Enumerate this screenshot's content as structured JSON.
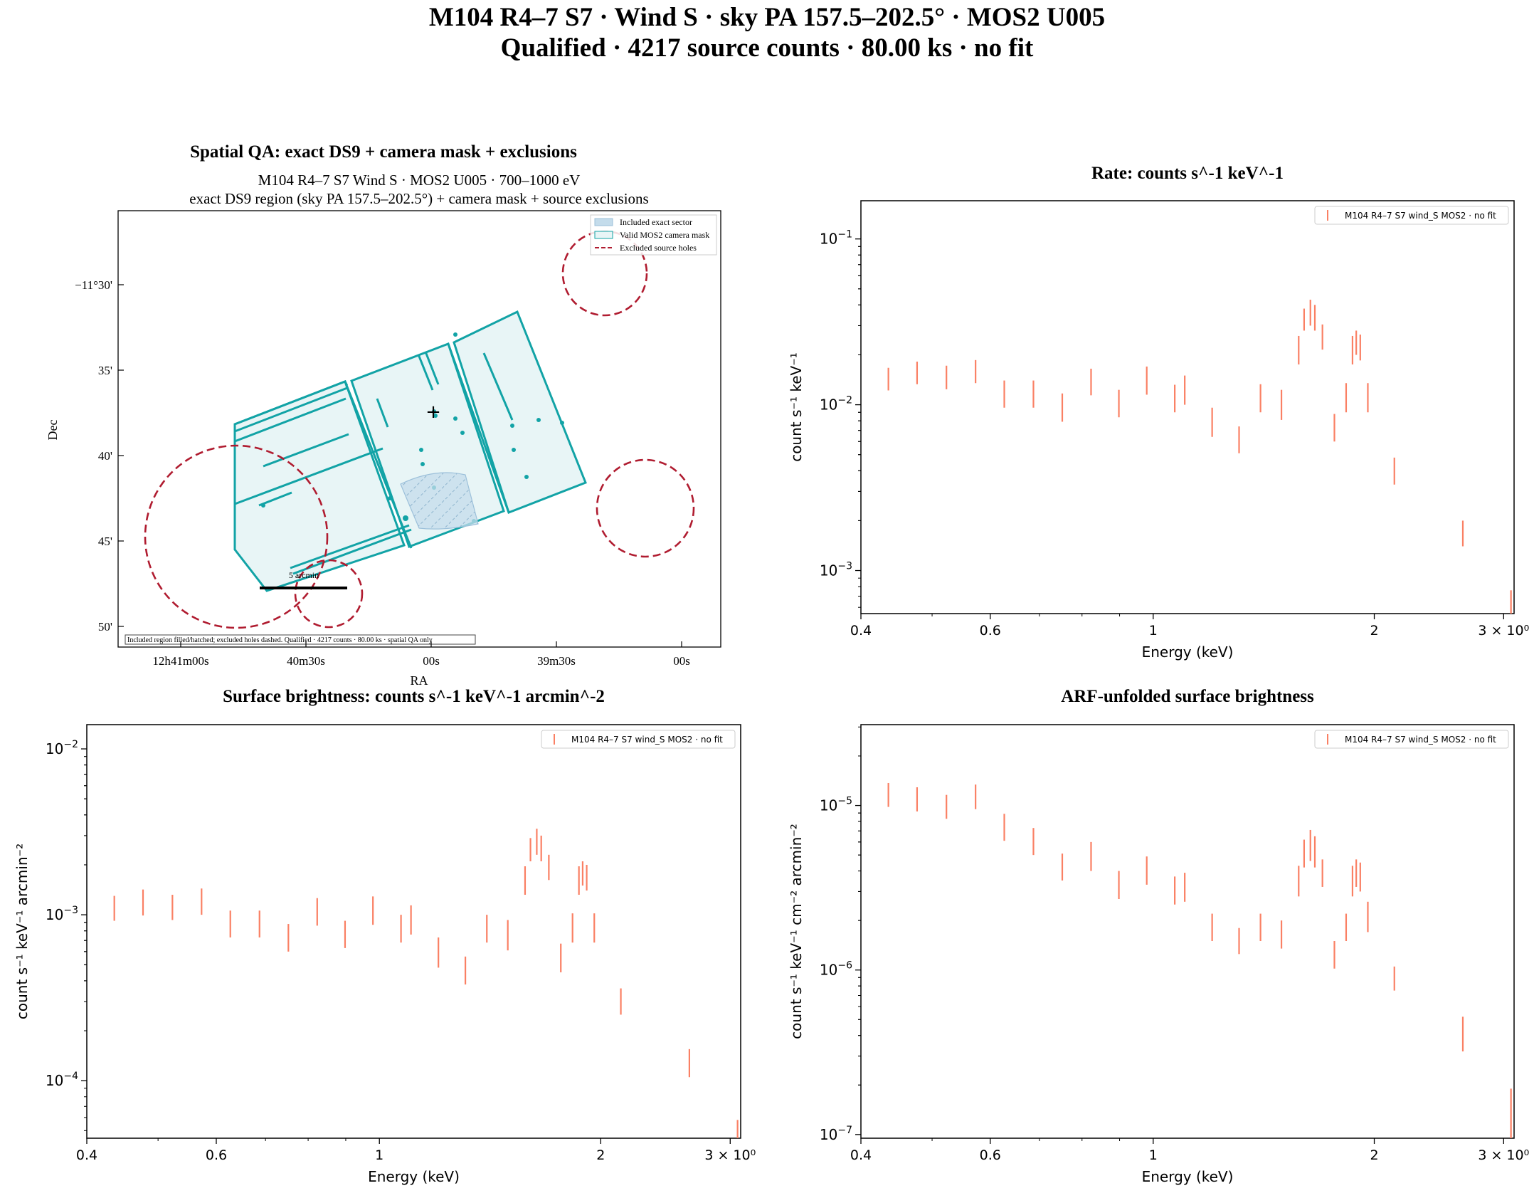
{
  "figure": {
    "title_line1": "M104 R4–7 S7 · Wind S · sky PA 157.5–202.5° · MOS2 U005",
    "title_line2": "Qualified · 4217 source counts · 80.00 ks · no fit"
  },
  "colors": {
    "teal": "#12a3a6",
    "teal_fill": "#e8f5f6",
    "sector_fill": "#c4dceb",
    "exclusion": "#b01c30",
    "errorbar": "#fa8064"
  },
  "spatial_panel": {
    "title": "Spatial QA: exact DS9 + camera mask + exclusions",
    "subtitle_line1": "M104 R4–7 S7 Wind S · MOS2 U005 · 700–1000 eV",
    "subtitle_line2": "exact DS9 region (sky PA 157.5–202.5°) + camera mask + source exclusions",
    "xlabel": "RA",
    "ylabel": "Dec",
    "x_ticks": [
      "12h41m00s",
      "40m30s",
      "00s",
      "39m30s",
      "00s"
    ],
    "y_ticks": [
      "−11°30'",
      "35'",
      "40'",
      "45'",
      "50'"
    ],
    "legend": [
      "Included exact sector",
      "Valid MOS2 camera mask",
      "Excluded source holes"
    ],
    "scalebar_label": "5 arcmin",
    "footer": "Included region filled/hatched; excluded holes dashed. Qualified · 4217 counts · 80.00 ks · spatial QA only",
    "marker": "+"
  },
  "chart_data": [
    {
      "type": "scatter",
      "title": "Rate: counts s^-1 keV^-1",
      "xlabel": "Energy (keV)",
      "ylabel": "count s⁻¹ keV⁻¹",
      "xscale": "log",
      "yscale": "log",
      "xlim": [
        0.4,
        3.1
      ],
      "ylim": [
        0.00055,
        0.17
      ],
      "x_ticks": [
        {
          "v": 0.4,
          "t": "0.4"
        },
        {
          "v": 0.6,
          "t": "0.6"
        },
        {
          "v": 1,
          "t": "1"
        },
        {
          "v": 2,
          "t": "2"
        },
        {
          "v": 3,
          "t": "3 × 10⁰"
        }
      ],
      "y_ticks": [
        {
          "v": 0.1,
          "m": "10",
          "e": "−1"
        },
        {
          "v": 0.01,
          "m": "10",
          "e": "−2"
        },
        {
          "v": 0.001,
          "m": "10",
          "e": "−3"
        }
      ],
      "legend": "M104 R4–7 S7 wind_S MOS2 · no fit",
      "series": [
        {
          "name": "M104 R4–7 S7 wind_S MOS2 · no fit",
          "points": [
            [
              0.436,
              0.0122,
              0.0167
            ],
            [
              0.477,
              0.0133,
              0.0182
            ],
            [
              0.523,
              0.0124,
              0.0172
            ],
            [
              0.573,
              0.0135,
              0.0186
            ],
            [
              0.627,
              0.0096,
              0.014
            ],
            [
              0.687,
              0.0096,
              0.014
            ],
            [
              0.752,
              0.0079,
              0.0117
            ],
            [
              0.823,
              0.0114,
              0.0165
            ],
            [
              0.898,
              0.0084,
              0.0123
            ],
            [
              0.98,
              0.0115,
              0.017
            ],
            [
              1.07,
              0.009,
              0.0132
            ],
            [
              1.104,
              0.01,
              0.015
            ],
            [
              1.203,
              0.0064,
              0.0096
            ],
            [
              1.309,
              0.0051,
              0.0074
            ],
            [
              1.4,
              0.009,
              0.0133
            ],
            [
              1.495,
              0.0081,
              0.0123
            ],
            [
              1.578,
              0.0175,
              0.026
            ],
            [
              1.605,
              0.028,
              0.038
            ],
            [
              1.637,
              0.03,
              0.043
            ],
            [
              1.66,
              0.028,
              0.04
            ],
            [
              1.7,
              0.0215,
              0.0305
            ],
            [
              1.765,
              0.006,
              0.0088
            ],
            [
              1.831,
              0.009,
              0.0135
            ],
            [
              1.868,
              0.0175,
              0.026
            ],
            [
              1.89,
              0.02,
              0.028
            ],
            [
              1.914,
              0.0185,
              0.0265
            ],
            [
              1.96,
              0.009,
              0.0135
            ],
            [
              2.13,
              0.0033,
              0.0048
            ],
            [
              2.64,
              0.0014,
              0.002
            ],
            [
              3.07,
              0.00052,
              0.00076
            ]
          ]
        }
      ]
    },
    {
      "type": "scatter",
      "title": "Surface brightness: counts s^-1 keV^-1 arcmin^-2",
      "xlabel": "Energy (keV)",
      "ylabel": "count s⁻¹ keV⁻¹ arcmin⁻²",
      "xscale": "log",
      "yscale": "log",
      "xlim": [
        0.4,
        3.1
      ],
      "ylim": [
        4.5e-05,
        0.014
      ],
      "x_ticks": [
        {
          "v": 0.4,
          "t": "0.4"
        },
        {
          "v": 0.6,
          "t": "0.6"
        },
        {
          "v": 1,
          "t": "1"
        },
        {
          "v": 2,
          "t": "2"
        },
        {
          "v": 3,
          "t": "3 × 10⁰"
        }
      ],
      "y_ticks": [
        {
          "v": 0.01,
          "m": "10",
          "e": "−2"
        },
        {
          "v": 0.001,
          "m": "10",
          "e": "−3"
        },
        {
          "v": 0.0001,
          "m": "10",
          "e": "−4"
        }
      ],
      "legend": "M104 R4–7 S7 wind_S MOS2 · no fit",
      "series": [
        {
          "name": "M104 R4–7 S7 wind_S MOS2 · no fit",
          "points": [
            [
              0.436,
              0.00092,
              0.0013
            ],
            [
              0.477,
              0.00099,
              0.00142
            ],
            [
              0.523,
              0.00093,
              0.00132
            ],
            [
              0.573,
              0.001,
              0.00144
            ],
            [
              0.627,
              0.00073,
              0.00106
            ],
            [
              0.687,
              0.00073,
              0.00106
            ],
            [
              0.752,
              0.0006,
              0.00088
            ],
            [
              0.823,
              0.00086,
              0.00126
            ],
            [
              0.898,
              0.00063,
              0.00092
            ],
            [
              0.98,
              0.00087,
              0.00129
            ],
            [
              1.07,
              0.00068,
              0.001
            ],
            [
              1.104,
              0.00076,
              0.00114
            ],
            [
              1.203,
              0.00048,
              0.00073
            ],
            [
              1.309,
              0.00038,
              0.00056
            ],
            [
              1.4,
              0.00068,
              0.001
            ],
            [
              1.495,
              0.00061,
              0.00093
            ],
            [
              1.578,
              0.00132,
              0.00196
            ],
            [
              1.605,
              0.0021,
              0.0029
            ],
            [
              1.637,
              0.0023,
              0.0033
            ],
            [
              1.66,
              0.0021,
              0.003
            ],
            [
              1.7,
              0.00162,
              0.0023
            ],
            [
              1.765,
              0.00045,
              0.00067
            ],
            [
              1.831,
              0.00068,
              0.00102
            ],
            [
              1.868,
              0.00132,
              0.00196
            ],
            [
              1.89,
              0.0015,
              0.0021
            ],
            [
              1.914,
              0.0014,
              0.002
            ],
            [
              1.96,
              0.00068,
              0.00102
            ],
            [
              2.13,
              0.00025,
              0.00036
            ],
            [
              2.64,
              0.000105,
              0.000155
            ],
            [
              3.07,
              3.9e-05,
              5.8e-05
            ]
          ]
        }
      ]
    },
    {
      "type": "scatter",
      "title": "ARF-unfolded surface brightness",
      "xlabel": "Energy (keV)",
      "ylabel": "count s⁻¹ keV⁻¹ cm⁻² arcmin⁻²",
      "xscale": "log",
      "yscale": "log",
      "xlim": [
        0.4,
        3.1
      ],
      "ylim": [
        9.5e-08,
        3.1e-05
      ],
      "x_ticks": [
        {
          "v": 0.4,
          "t": "0.4"
        },
        {
          "v": 0.6,
          "t": "0.6"
        },
        {
          "v": 1,
          "t": "1"
        },
        {
          "v": 2,
          "t": "2"
        },
        {
          "v": 3,
          "t": "3 × 10⁰"
        }
      ],
      "y_ticks": [
        {
          "v": 1e-05,
          "m": "10",
          "e": "−5"
        },
        {
          "v": 1e-06,
          "m": "10",
          "e": "−6"
        },
        {
          "v": 1e-07,
          "m": "10",
          "e": "−7"
        }
      ],
      "legend": "M104 R4–7 S7 wind_S MOS2 · no fit",
      "series": [
        {
          "name": "M104 R4–7 S7 wind_S MOS2 · no fit",
          "points": [
            [
              0.436,
              9.8e-06,
              1.37e-05
            ],
            [
              0.477,
              9.2e-06,
              1.29e-05
            ],
            [
              0.523,
              8.3e-06,
              1.16e-05
            ],
            [
              0.573,
              9.5e-06,
              1.34e-05
            ],
            [
              0.627,
              6.1e-06,
              8.9e-06
            ],
            [
              0.687,
              5e-06,
              7.3e-06
            ],
            [
              0.752,
              3.5e-06,
              5.1e-06
            ],
            [
              0.823,
              4e-06,
              6e-06
            ],
            [
              0.898,
              2.7e-06,
              4e-06
            ],
            [
              0.98,
              3.3e-06,
              4.9e-06
            ],
            [
              1.07,
              2.5e-06,
              3.7e-06
            ],
            [
              1.104,
              2.6e-06,
              3.9e-06
            ],
            [
              1.203,
              1.5e-06,
              2.2e-06
            ],
            [
              1.309,
              1.25e-06,
              1.8e-06
            ],
            [
              1.4,
              1.5e-06,
              2.2e-06
            ],
            [
              1.495,
              1.35e-06,
              2e-06
            ],
            [
              1.578,
              2.8e-06,
              4.3e-06
            ],
            [
              1.605,
              4.2e-06,
              6.2e-06
            ],
            [
              1.637,
              4.6e-06,
              7.1e-06
            ],
            [
              1.66,
              4.2e-06,
              6.5e-06
            ],
            [
              1.7,
              3.2e-06,
              4.7e-06
            ],
            [
              1.765,
              1.02e-06,
              1.5e-06
            ],
            [
              1.831,
              1.5e-06,
              2.2e-06
            ],
            [
              1.868,
              2.8e-06,
              4.3e-06
            ],
            [
              1.89,
              3.2e-06,
              4.7e-06
            ],
            [
              1.914,
              3e-06,
              4.5e-06
            ],
            [
              1.96,
              1.7e-06,
              2.6e-06
            ],
            [
              2.13,
              7.5e-07,
              1.05e-06
            ],
            [
              2.64,
              3.2e-07,
              5.2e-07
            ],
            [
              3.07,
              9.5e-08,
              1.9e-07
            ]
          ]
        }
      ]
    }
  ]
}
